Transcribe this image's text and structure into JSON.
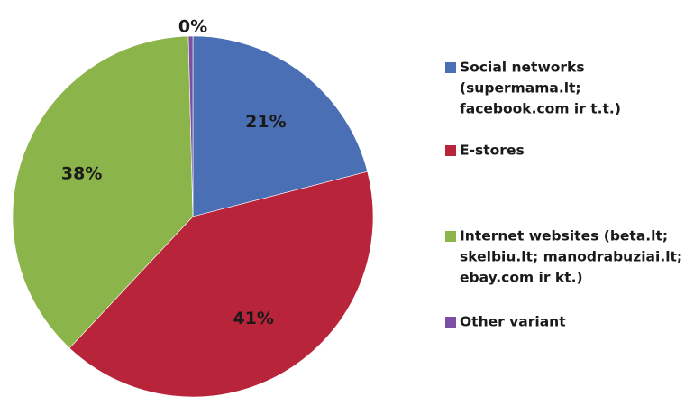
{
  "chart_data": {
    "type": "pie",
    "title": "",
    "legend_position": "right",
    "categories": [
      "Social networks (supermama.lt; facebook.com ir t.t.)",
      "E-stores",
      "Internet websites (beta.lt; skelbiu.lt; manodrabuziai.lt; ebay.com ir kt.)",
      "Other variant"
    ],
    "values": [
      21,
      41,
      38,
      0
    ],
    "data_labels": [
      "21%",
      "41%",
      "38%",
      "0%"
    ],
    "legend": [
      {
        "lines": [
          "Social networks",
          "(supermama.lt;",
          "facebook.com ir t.t.)"
        ]
      },
      {
        "lines": [
          "E-stores"
        ]
      },
      {
        "lines": [
          "Internet websites (beta.lt;",
          "skelbiu.lt; manodrabuziai.lt;",
          "ebay.com ir kt.)"
        ]
      },
      {
        "lines": [
          "Other variant"
        ]
      }
    ],
    "colors": [
      "#4a6fb5",
      "#b8243a",
      "#8bb54a",
      "#7b4fa3"
    ]
  }
}
